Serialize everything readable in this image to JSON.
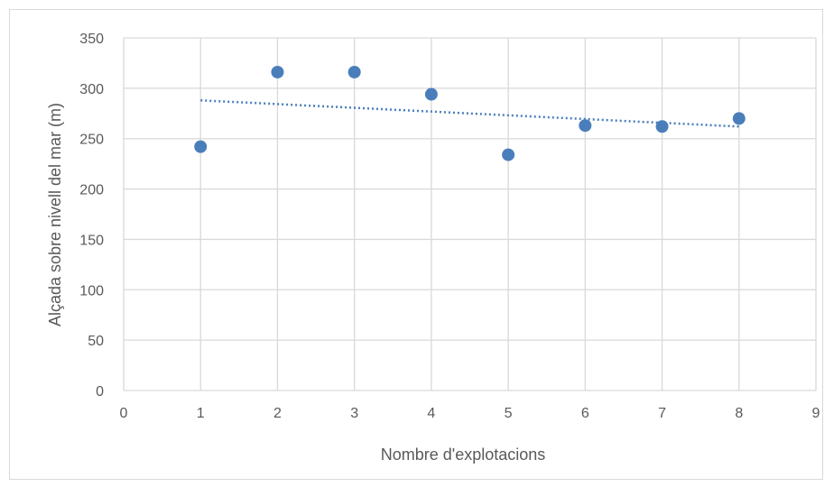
{
  "chart_data": {
    "type": "scatter",
    "title": "",
    "xlabel": "Nombre d'explotacions",
    "ylabel": "Alçada sobre nivell  del mar (m)",
    "xlim": [
      0,
      9
    ],
    "ylim": [
      0,
      350
    ],
    "xticks": [
      0,
      1,
      2,
      3,
      4,
      5,
      6,
      7,
      8,
      9
    ],
    "yticks": [
      0,
      50,
      100,
      150,
      200,
      250,
      300,
      350
    ],
    "grid": true,
    "legend": "none",
    "series": [
      {
        "x": [
          1,
          2,
          3,
          4,
          5,
          6,
          7,
          8
        ],
        "y": [
          242,
          316,
          316,
          294,
          234,
          263,
          262,
          270
        ],
        "color": "#4a7ebb"
      }
    ],
    "trendline": {
      "type": "linear",
      "x": [
        1,
        8
      ],
      "y": [
        288,
        262
      ],
      "style": "dotted",
      "color": "#4a7ebb"
    }
  }
}
